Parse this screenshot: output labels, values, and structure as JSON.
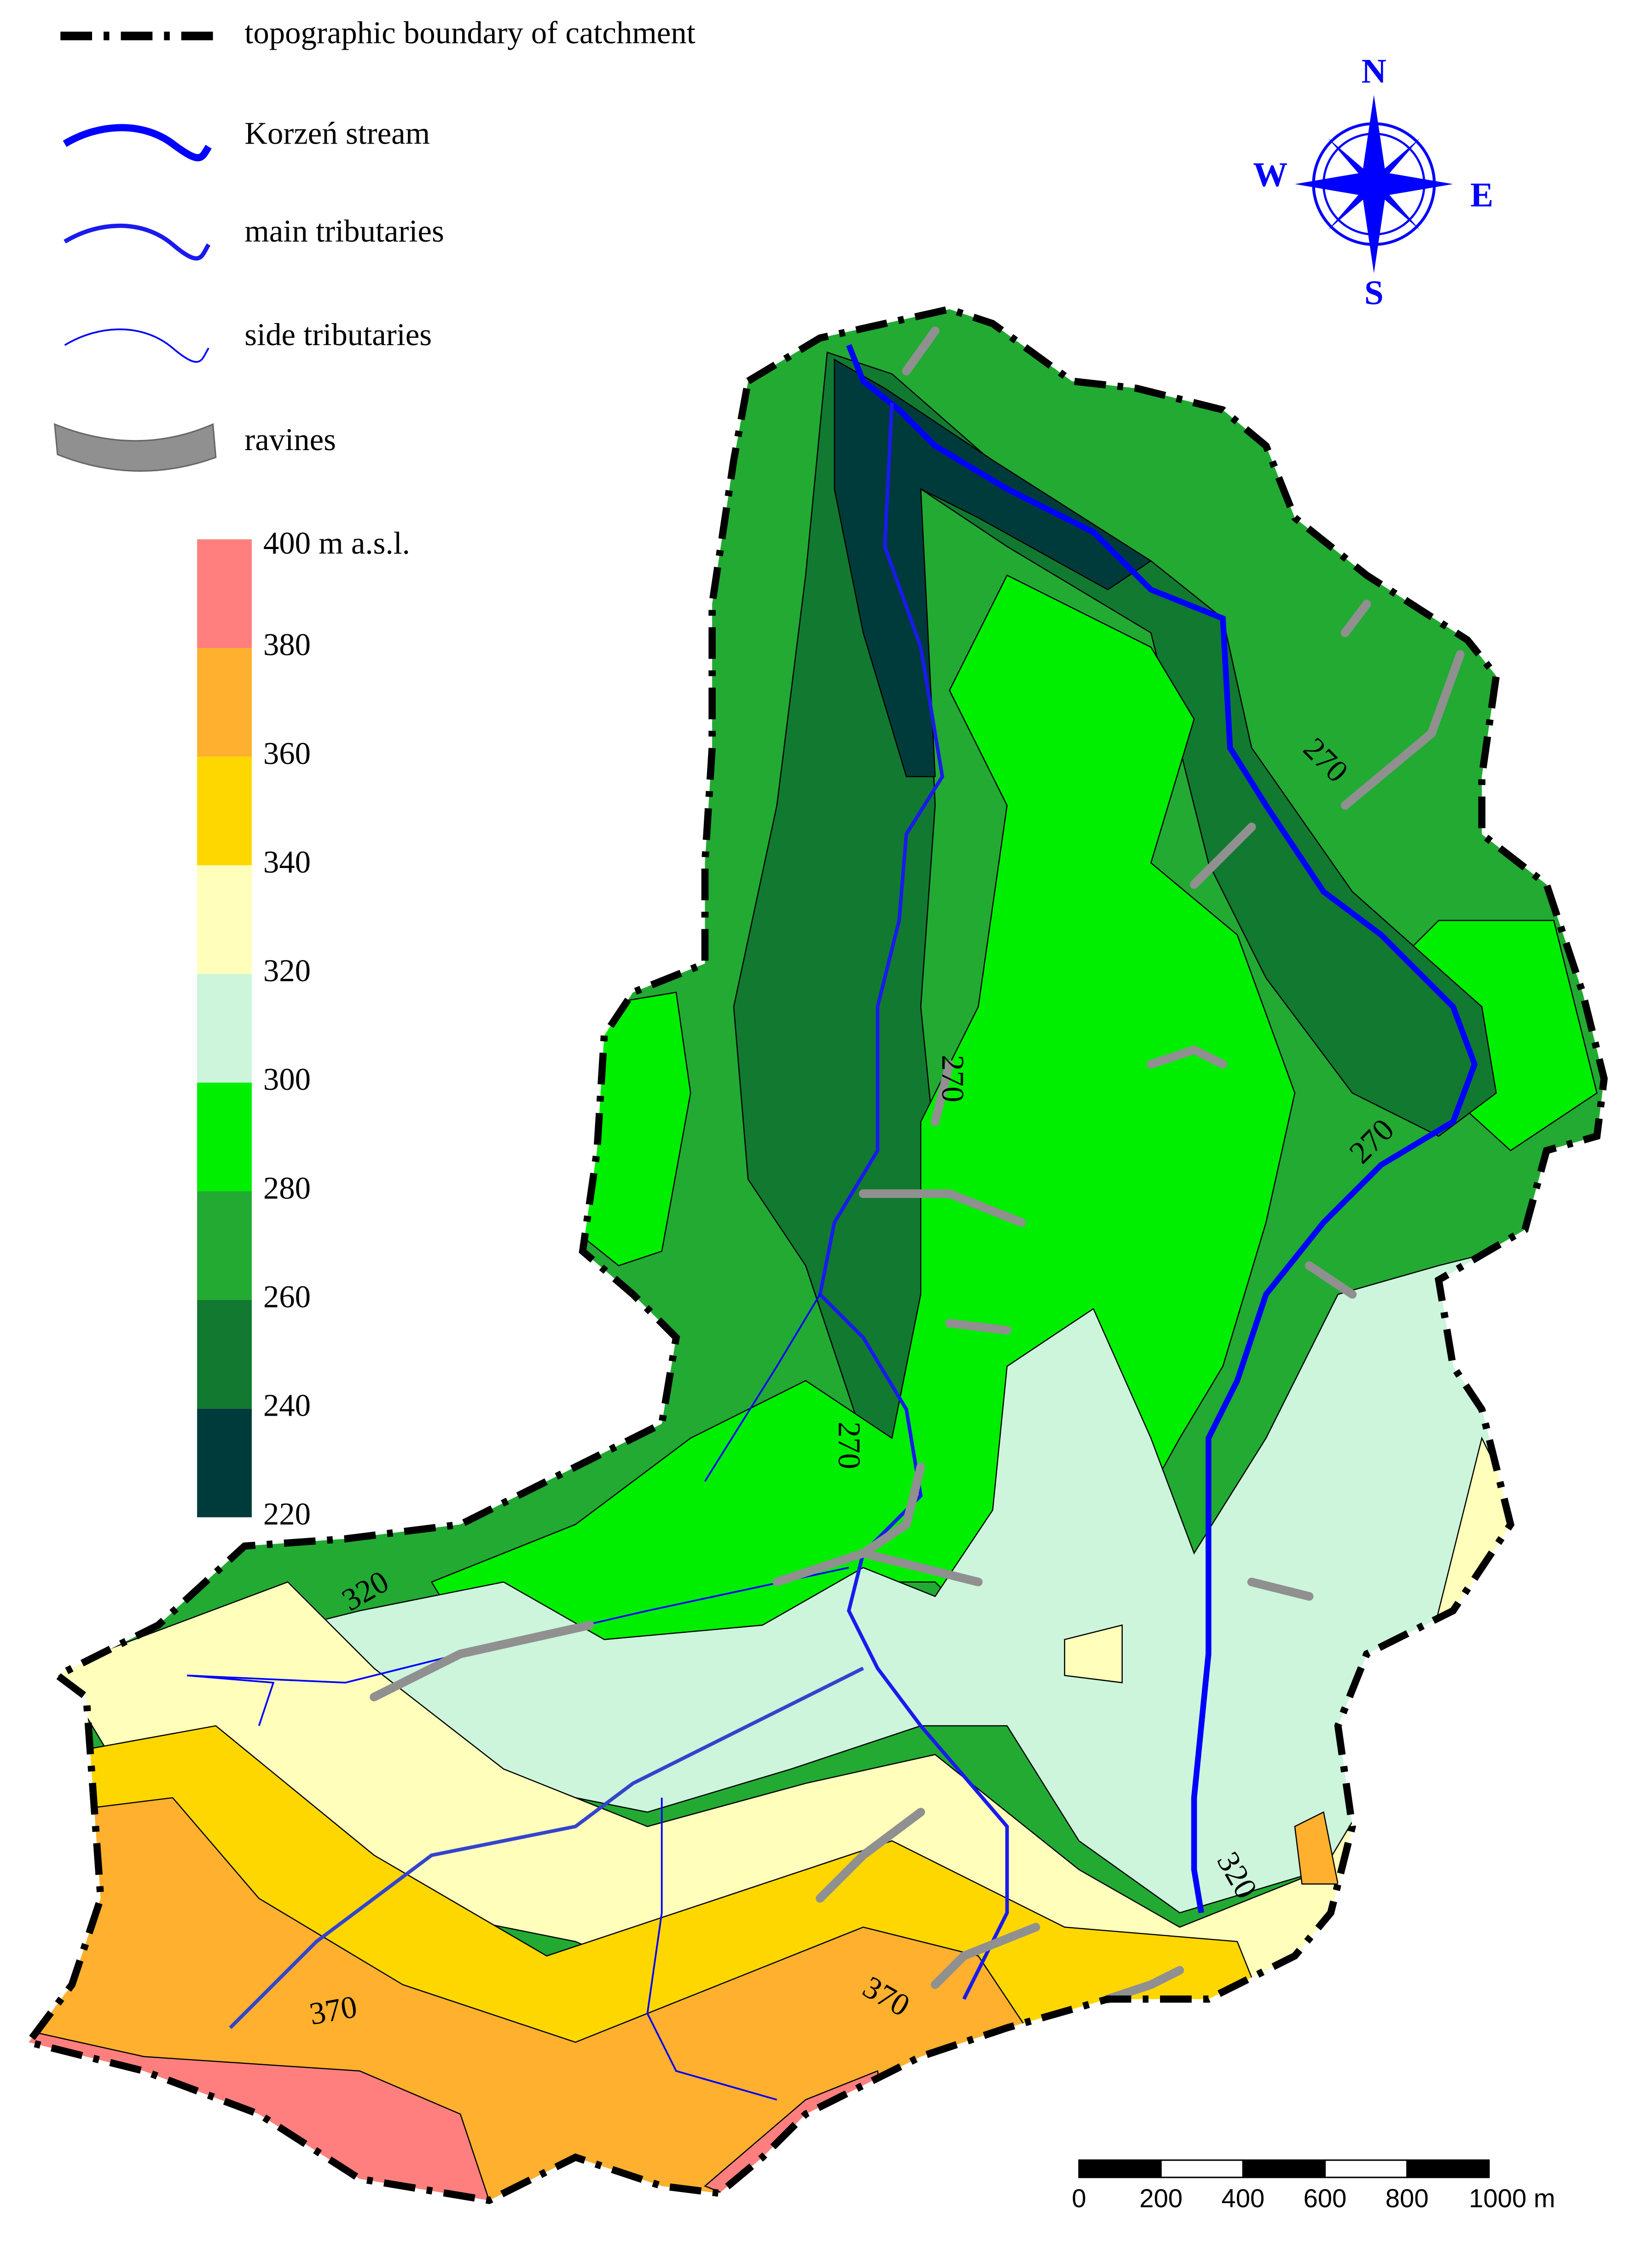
{
  "legend": {
    "items": [
      "topographic boundary of catchment",
      "Korzeń stream",
      "main tributaries",
      "side tributaries",
      "ravines"
    ]
  },
  "elevation_scale": {
    "labels": [
      "400 m a.s.l.",
      "380",
      "360",
      "340",
      "320",
      "300",
      "280",
      "260",
      "240",
      "220"
    ],
    "colors": [
      "#ff7f7f",
      "#ffb02e",
      "#ffd700",
      "#ffffbb",
      "#ccf5dc",
      "#00ee00",
      "#22aa33",
      "#117a30",
      "#003b3b"
    ]
  },
  "compass": {
    "north": "N",
    "east": "E",
    "south": "S",
    "west": "W"
  },
  "scale_bar": {
    "labels": [
      "0",
      "200",
      "400",
      "600",
      "800",
      "1000 m"
    ]
  },
  "contour_labels": [
    "320",
    "270",
    "270",
    "270",
    "270",
    "320",
    "370",
    "370"
  ]
}
